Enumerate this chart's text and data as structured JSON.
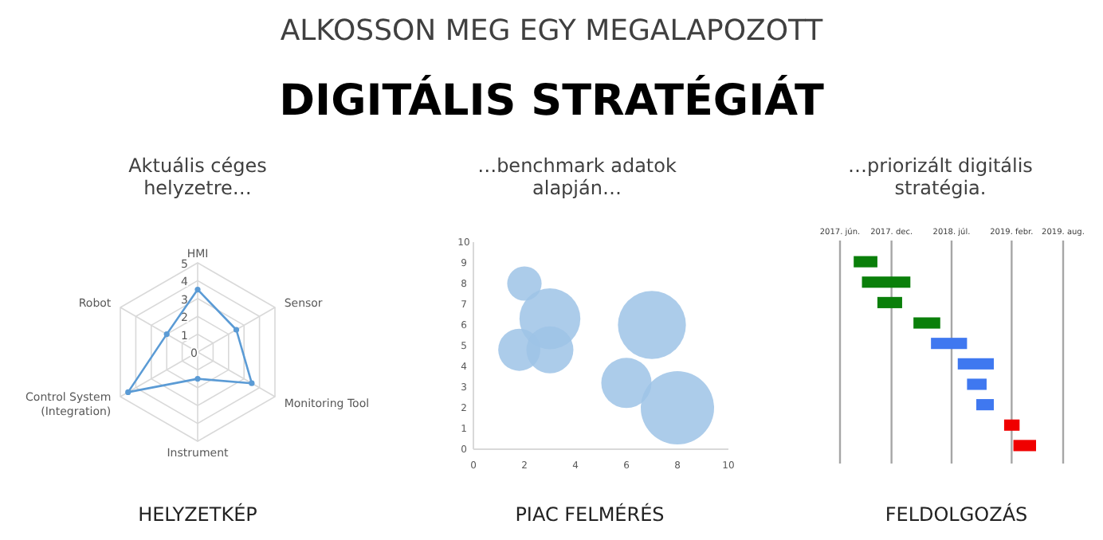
{
  "chart_data": [
    {
      "type": "other",
      "title": "ALKOSSON MEG EGY MEGALAPOZOTT",
      "subtitle": "DIGITÁLIS STRATÉGIÁT"
    },
    {
      "type": "radar",
      "title": "Aktuális céges helyzetre…",
      "categories": [
        "HMI",
        "Sensor",
        "Monitoring Tool",
        "Instrument",
        "Control System (Integration)",
        "Robot"
      ],
      "series": [
        {
          "color": "#5b9bd5",
          "values": [
            3.5,
            2.5,
            3.5,
            1.5,
            4.5,
            2
          ]
        }
      ],
      "ylim": [
        0,
        5
      ],
      "yticks": [
        0,
        1,
        2,
        3,
        4,
        5
      ],
      "grid": true,
      "marker": "circle",
      "annotations": [
        "HELYZETKÉP"
      ]
    },
    {
      "type": "bubble",
      "title": "…benchmark adatok alapján…",
      "x": [
        2,
        3,
        1.8,
        3,
        7,
        6,
        8
      ],
      "values": [
        8,
        6.3,
        4.8,
        4.8,
        6,
        3.2,
        2
      ],
      "sizes": [
        0.22,
        0.69,
        0.33,
        0.41,
        0.86,
        0.47,
        1
      ],
      "color": "#9dc3e6",
      "xlim": [
        0,
        10
      ],
      "ylim": [
        0,
        10
      ],
      "xticks": [
        0,
        2,
        4,
        6,
        8,
        10
      ],
      "yticks": [
        0,
        1,
        2,
        3,
        4,
        5,
        6,
        7,
        8,
        9,
        10
      ],
      "annotations": [
        "PIAC FELMÉRÉS"
      ]
    },
    {
      "type": "bar",
      "orientation": "horizontal",
      "title": "…priorizált digitális stratégia.",
      "categories": [
        null,
        null,
        null,
        null,
        null,
        null,
        null,
        null,
        null,
        null
      ],
      "base": [
        2017.55,
        2017.63,
        2017.78,
        2018.13,
        2018.3,
        2018.56,
        2018.65,
        2018.74,
        2019.01,
        2019.1
      ],
      "values": [
        0.23,
        0.47,
        0.24,
        0.26,
        0.35,
        0.35,
        0.19,
        0.17,
        0.15,
        0.22
      ],
      "colors": [
        "#0a7f0a",
        "#0a7f0a",
        "#0a7f0a",
        "#0a7f0a",
        "#3f78f0",
        "#3f78f0",
        "#3f78f0",
        "#3f78f0",
        "#f00000",
        "#f00000"
      ],
      "xlim": [
        2017.417,
        2019.583
      ],
      "xticks": [
        {
          "value": 2017.417,
          "label": "2017. jún."
        },
        {
          "value": 2017.917,
          "label": "2017. dec."
        },
        {
          "value": 2018.5,
          "label": "2018. júl."
        },
        {
          "value": 2019.083,
          "label": "2019. febr."
        },
        {
          "value": 2019.583,
          "label": "2019. aug."
        }
      ],
      "grid": "x",
      "tick_labels": "x",
      "annotations": [
        "FELDOLGOZÁS"
      ]
    }
  ]
}
